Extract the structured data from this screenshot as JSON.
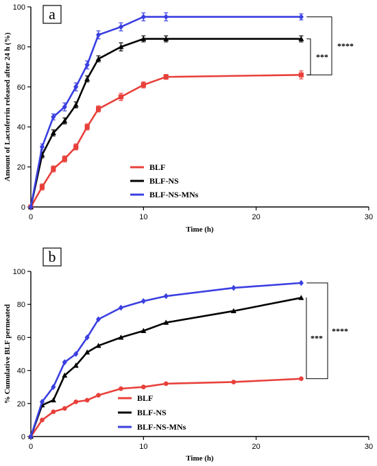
{
  "chart_data": [
    {
      "type": "line",
      "panel_label": "a",
      "xlabel": "Time (h)",
      "ylabel": "Amount of Lactoferrin released after 24 h (%)",
      "xlim": [
        0,
        30
      ],
      "ylim": [
        0,
        100
      ],
      "x_ticks": [
        0,
        10,
        20,
        30
      ],
      "y_ticks": [
        0,
        20,
        40,
        60,
        80,
        100
      ],
      "error_bars": true,
      "legend_position": "bottom-center",
      "series": [
        {
          "name": "BLF",
          "color": "#e8403a",
          "marker": "square",
          "x": [
            0,
            1,
            2,
            3,
            4,
            5,
            6,
            8,
            10,
            12,
            24
          ],
          "y": [
            0,
            10,
            19,
            24,
            30,
            40,
            49,
            55,
            61,
            65,
            66
          ],
          "err": [
            0,
            1.5,
            1.5,
            1.5,
            1.5,
            1.5,
            1.5,
            1.8,
            1.5,
            1.2,
            2
          ]
        },
        {
          "name": "BLF-NS",
          "color": "#000000",
          "marker": "triangle",
          "x": [
            0,
            1,
            2,
            3,
            4,
            5,
            6,
            8,
            10,
            12,
            24
          ],
          "y": [
            0,
            26,
            37,
            43,
            51,
            64,
            74,
            80,
            84,
            84,
            84
          ],
          "err": [
            0,
            1.5,
            1.5,
            1.5,
            1.5,
            1.5,
            1.5,
            2,
            1.5,
            1.5,
            1.5
          ]
        },
        {
          "name": "BLF-NS-MNs",
          "color": "#3a3fe0",
          "marker": "diamond",
          "x": [
            0,
            1,
            2,
            3,
            4,
            5,
            6,
            8,
            10,
            12,
            24
          ],
          "y": [
            0,
            30,
            45,
            50,
            60,
            71,
            86,
            90,
            95,
            95,
            95
          ],
          "err": [
            0,
            1.5,
            1.5,
            2,
            2,
            2,
            2,
            2,
            2,
            2,
            1.5
          ]
        }
      ],
      "significance": [
        {
          "label": "***",
          "between": [
            "BLF",
            "BLF-NS"
          ]
        },
        {
          "label": "****",
          "between": [
            "BLF",
            "BLF-NS-MNs"
          ]
        }
      ]
    },
    {
      "type": "line",
      "panel_label": "b",
      "xlabel": "Time (h)",
      "ylabel": "% Cumulative BLF permeated",
      "xlim": [
        0,
        30
      ],
      "ylim": [
        0,
        100
      ],
      "x_ticks": [
        0,
        10,
        20,
        30
      ],
      "y_ticks": [
        0,
        20,
        40,
        60,
        80,
        100
      ],
      "error_bars": false,
      "legend_position": "bottom-center",
      "series": [
        {
          "name": "BLF",
          "color": "#e8403a",
          "marker": "circle",
          "x": [
            0,
            1,
            2,
            3,
            4,
            5,
            6,
            8,
            10,
            12,
            18,
            24
          ],
          "y": [
            0,
            10,
            15,
            17,
            21,
            22,
            25,
            29,
            30,
            32,
            33,
            35
          ]
        },
        {
          "name": "BLF-NS",
          "color": "#000000",
          "marker": "triangle",
          "x": [
            0,
            1,
            2,
            3,
            4,
            5,
            6,
            8,
            10,
            12,
            18,
            24
          ],
          "y": [
            0,
            19,
            22,
            37,
            43,
            51,
            55,
            60,
            64,
            69,
            76,
            84
          ]
        },
        {
          "name": "BLF-NS-MNs",
          "color": "#3a3fe0",
          "marker": "diamond",
          "x": [
            0,
            1,
            2,
            3,
            4,
            5,
            6,
            8,
            10,
            12,
            18,
            24
          ],
          "y": [
            0,
            21,
            30,
            45,
            50,
            60,
            71,
            78,
            82,
            85,
            90,
            93
          ]
        }
      ],
      "significance": [
        {
          "label": "***",
          "between": [
            "BLF",
            "BLF-NS"
          ]
        },
        {
          "label": "****",
          "between": [
            "BLF",
            "BLF-NS-MNs"
          ]
        }
      ]
    }
  ]
}
